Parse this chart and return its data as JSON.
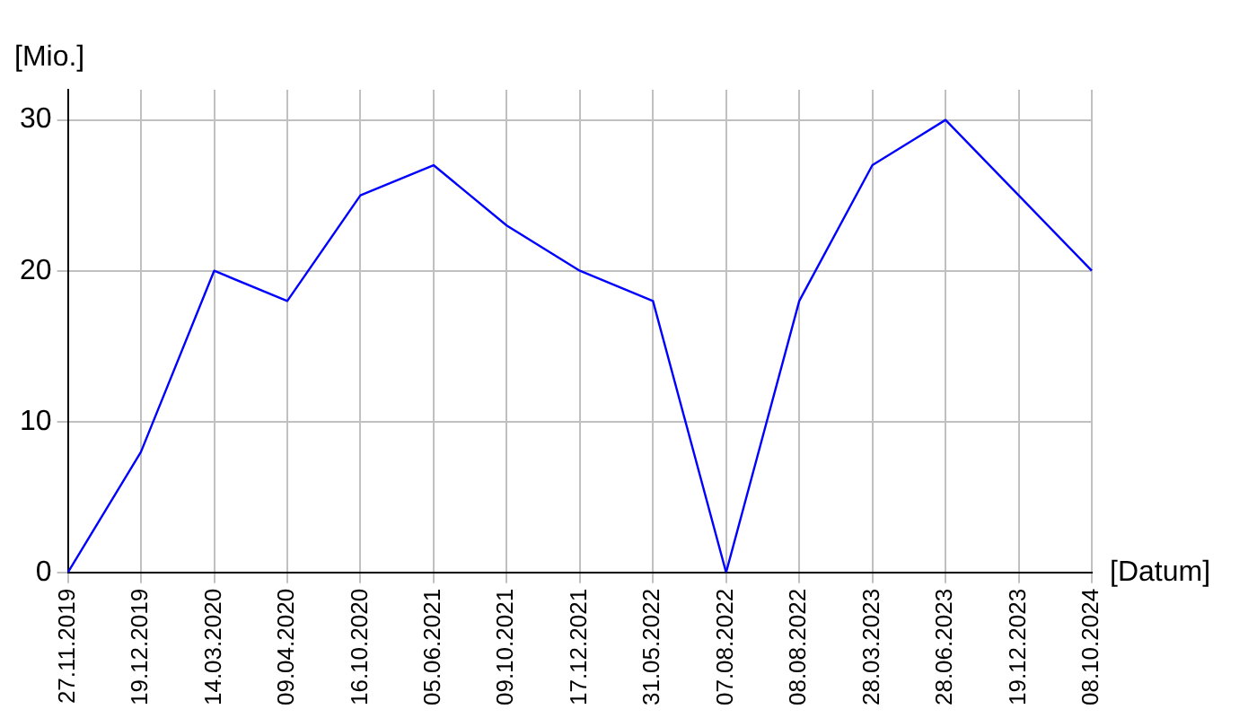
{
  "chart_data": {
    "type": "line",
    "xlabel": "[Datum]",
    "ylabel": "[Mio.]",
    "categories": [
      "27.11.2019",
      "19.12.2019",
      "14.03.2020",
      "09.04.2020",
      "16.10.2020",
      "05.06.2021",
      "09.10.2021",
      "17.12.2021",
      "31.05.2022",
      "07.08.2022",
      "08.08.2022",
      "28.03.2023",
      "28.06.2023",
      "19.12.2023",
      "08.10.2024"
    ],
    "series": [
      {
        "color": "#0000ff",
        "values": [
          0,
          8,
          20,
          18,
          25,
          27,
          23,
          20,
          18,
          0,
          18,
          27,
          30,
          25,
          20
        ]
      }
    ],
    "ylim": [
      0,
      32
    ],
    "yticks": [
      0,
      10,
      20,
      30
    ],
    "grid": true,
    "marker": "none",
    "line_style": "solid"
  }
}
